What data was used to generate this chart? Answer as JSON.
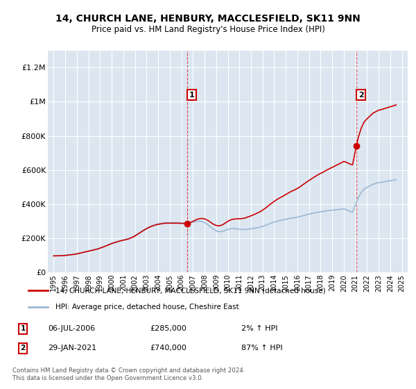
{
  "title_line1": "14, CHURCH LANE, HENBURY, MACCLESFIELD, SK11 9NN",
  "title_line2": "Price paid vs. HM Land Registry's House Price Index (HPI)",
  "ylim": [
    0,
    1300000
  ],
  "yticks": [
    0,
    200000,
    400000,
    600000,
    800000,
    1000000,
    1200000
  ],
  "ytick_labels": [
    "£0",
    "£200K",
    "£400K",
    "£600K",
    "£800K",
    "£1M",
    "£1.2M"
  ],
  "xlim_start": 1994.5,
  "xlim_end": 2025.5,
  "xticks": [
    1995,
    1996,
    1997,
    1998,
    1999,
    2000,
    2001,
    2002,
    2003,
    2004,
    2005,
    2006,
    2007,
    2008,
    2009,
    2010,
    2011,
    2012,
    2013,
    2014,
    2015,
    2016,
    2017,
    2018,
    2019,
    2020,
    2021,
    2022,
    2023,
    2024,
    2025
  ],
  "background_color": "#dce6f1",
  "grid_color": "#ffffff",
  "line1_color": "#cc0000",
  "line2_color": "#99b8d4",
  "sale1_x": 2006.5,
  "sale1_y": 285000,
  "sale1_label": "1",
  "sale2_x": 2021.08,
  "sale2_y": 740000,
  "sale2_label": "2",
  "annotation1_date": "06-JUL-2006",
  "annotation1_price": "£285,000",
  "annotation1_hpi": "2% ↑ HPI",
  "annotation2_date": "29-JAN-2021",
  "annotation2_price": "£740,000",
  "annotation2_hpi": "87% ↑ HPI",
  "legend_line1": "14, CHURCH LANE, HENBURY, MACCLESFIELD, SK11 9NN (detached house)",
  "legend_line2": "HPI: Average price, detached house, Cheshire East",
  "footer": "Contains HM Land Registry data © Crown copyright and database right 2024.\nThis data is licensed under the Open Government Licence v3.0.",
  "hpi_years": [
    1995.0,
    1995.25,
    1995.5,
    1995.75,
    1996.0,
    1996.25,
    1996.5,
    1996.75,
    1997.0,
    1997.25,
    1997.5,
    1997.75,
    1998.0,
    1998.25,
    1998.5,
    1998.75,
    1999.0,
    1999.25,
    1999.5,
    1999.75,
    2000.0,
    2000.25,
    2000.5,
    2000.75,
    2001.0,
    2001.25,
    2001.5,
    2001.75,
    2002.0,
    2002.25,
    2002.5,
    2002.75,
    2003.0,
    2003.25,
    2003.5,
    2003.75,
    2004.0,
    2004.25,
    2004.5,
    2004.75,
    2005.0,
    2005.25,
    2005.5,
    2005.75,
    2006.0,
    2006.25,
    2006.5,
    2006.75,
    2007.0,
    2007.25,
    2007.5,
    2007.75,
    2008.0,
    2008.25,
    2008.5,
    2008.75,
    2009.0,
    2009.25,
    2009.5,
    2009.75,
    2010.0,
    2010.25,
    2010.5,
    2010.75,
    2011.0,
    2011.25,
    2011.5,
    2011.75,
    2012.0,
    2012.25,
    2012.5,
    2012.75,
    2013.0,
    2013.25,
    2013.5,
    2013.75,
    2014.0,
    2014.25,
    2014.5,
    2014.75,
    2015.0,
    2015.25,
    2015.5,
    2015.75,
    2016.0,
    2016.25,
    2016.5,
    2016.75,
    2017.0,
    2017.25,
    2017.5,
    2017.75,
    2018.0,
    2018.25,
    2018.5,
    2018.75,
    2019.0,
    2019.25,
    2019.5,
    2019.75,
    2020.0,
    2020.25,
    2020.5,
    2020.75,
    2021.0,
    2021.25,
    2021.5,
    2021.75,
    2022.0,
    2022.25,
    2022.5,
    2022.75,
    2023.0,
    2023.25,
    2023.5,
    2023.75,
    2024.0,
    2024.25,
    2024.5
  ],
  "hpi_values": [
    97000,
    97500,
    98000,
    98500,
    100000,
    102000,
    104000,
    106000,
    109000,
    113000,
    117000,
    121000,
    125000,
    129000,
    133000,
    137000,
    143000,
    149000,
    156000,
    163000,
    170000,
    176000,
    181000,
    186000,
    190000,
    194000,
    199000,
    206000,
    215000,
    226000,
    237000,
    248000,
    258000,
    267000,
    274000,
    280000,
    284000,
    287000,
    290000,
    291000,
    291000,
    291000,
    291000,
    291000,
    290000,
    289000,
    288000,
    290000,
    294000,
    298000,
    300000,
    298000,
    292000,
    281000,
    267000,
    253000,
    243000,
    238000,
    239000,
    245000,
    252000,
    256000,
    257000,
    255000,
    253000,
    251000,
    251000,
    253000,
    255000,
    258000,
    261000,
    264000,
    269000,
    275000,
    282000,
    289000,
    295000,
    300000,
    304000,
    307000,
    311000,
    315000,
    318000,
    320000,
    323000,
    327000,
    332000,
    337000,
    341000,
    345000,
    349000,
    352000,
    355000,
    357000,
    360000,
    362000,
    364000,
    366000,
    368000,
    370000,
    372000,
    366000,
    358000,
    352000,
    396000,
    438000,
    468000,
    488000,
    498000,
    507000,
    516000,
    521000,
    526000,
    528000,
    531000,
    534000,
    537000,
    540000,
    543000
  ]
}
